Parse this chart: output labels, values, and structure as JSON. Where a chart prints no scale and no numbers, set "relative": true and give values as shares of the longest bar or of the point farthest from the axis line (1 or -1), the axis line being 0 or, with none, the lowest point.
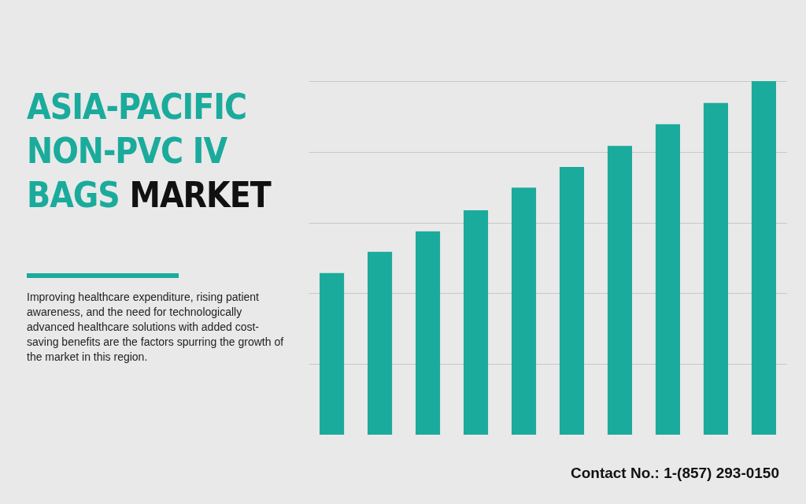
{
  "chart_data": {
    "type": "bar",
    "title": "ASIA-PACIFIC NON-PVC IV BAGS MARKET",
    "subtitle": "Improving healthcare expenditure, rising patient awareness, and the need for technologically advanced healthcare solutions with added cost-saving benefits are the factors spurring the growth of the market in this region.",
    "categories": [
      null,
      null,
      null,
      null,
      null,
      null,
      null,
      null,
      null,
      null
    ],
    "values": [
      0.457,
      0.517,
      0.575,
      0.635,
      0.699,
      0.757,
      0.817,
      0.878,
      0.938,
      1
    ],
    "color": "#1aab9c",
    "relative": true,
    "grid": "y",
    "annotations": [
      "Contact No.: 1-(857) 293-0150"
    ]
  }
}
